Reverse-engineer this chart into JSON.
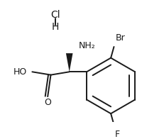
{
  "bg_color": "#ffffff",
  "line_color": "#1a1a1a",
  "text_color": "#1a1a1a",
  "fig_width": 2.32,
  "fig_height": 1.96,
  "dpi": 100,
  "labels": {
    "Cl": "Cl",
    "H": "H",
    "NH2": "NH₂",
    "Br": "Br",
    "HO": "HO",
    "O": "O",
    "F": "F"
  }
}
